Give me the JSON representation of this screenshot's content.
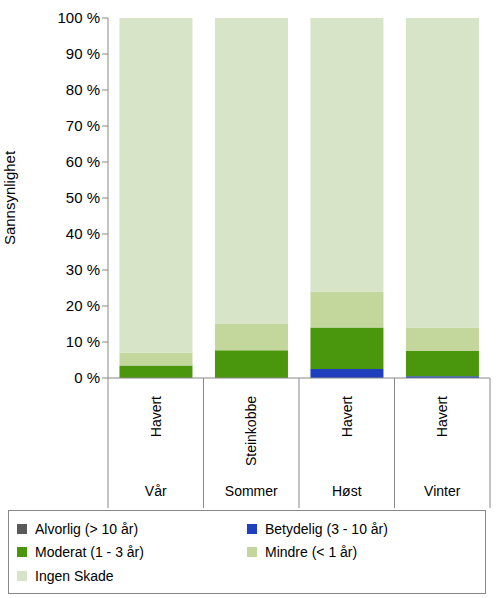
{
  "chart_data": {
    "type": "bar",
    "stacked": true,
    "grid": false,
    "legend": "bottom",
    "y_label": "Sannsynlighet",
    "categories": [
      "Havert",
      "Steinkobbe",
      "Havert",
      "Havert"
    ],
    "category_groups": [
      "Vår",
      "Sommer",
      "Høst",
      "Vinter"
    ],
    "ylim": [
      0,
      100
    ],
    "yticks": [
      {
        "value": 0,
        "label": "0 %"
      },
      {
        "value": 10,
        "label": "10 %"
      },
      {
        "value": 20,
        "label": "20 %"
      },
      {
        "value": 30,
        "label": "30 %"
      },
      {
        "value": 40,
        "label": "40 %"
      },
      {
        "value": 50,
        "label": "50 %"
      },
      {
        "value": 60,
        "label": "60 %"
      },
      {
        "value": 70,
        "label": "70 %"
      },
      {
        "value": 80,
        "label": "80 %"
      },
      {
        "value": 90,
        "label": "90 %"
      },
      {
        "value": 100,
        "label": "100 %"
      }
    ],
    "series": [
      {
        "name": "Alvorlig (> 10 år)",
        "color": "#595959",
        "values": [
          0,
          0,
          0,
          0
        ]
      },
      {
        "name": "Betydelig (3 - 10 år)",
        "color": "#1f3fbf",
        "values": [
          0,
          0,
          2.5,
          0.5
        ]
      },
      {
        "name": "Moderat (1 - 3 år)",
        "color": "#4a960c",
        "values": [
          3.5,
          7.7,
          11.5,
          7
        ]
      },
      {
        "name": "Mindre (< 1 år)",
        "color": "#c3d69b",
        "values": [
          3.5,
          7.3,
          10,
          6.5
        ]
      },
      {
        "name": "Ingen Skade",
        "color": "#d8e4c8",
        "values": [
          93,
          85,
          76,
          86
        ]
      }
    ]
  }
}
